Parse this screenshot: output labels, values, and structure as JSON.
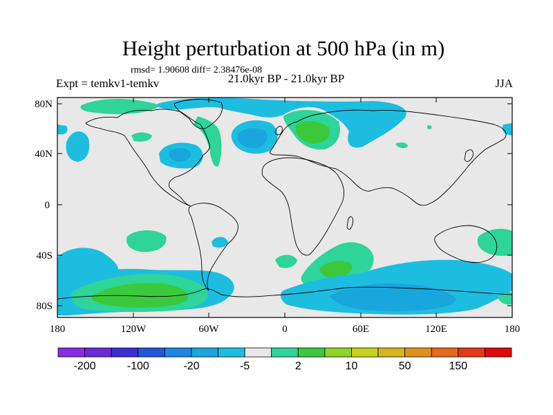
{
  "title": "Height perturbation at 500 hPa (in m)",
  "stats": "rmsd= 1.90608 diff= 2.38476e-08",
  "experiment": "Expt = temkv1-temkv",
  "period": "21.0kyr BP - 21.0kyr BP",
  "season": "JJA",
  "lat_ticks": [
    "80N",
    "40N",
    "0",
    "40S",
    "80S"
  ],
  "lon_ticks": [
    "180",
    "120W",
    "60W",
    "0",
    "60E",
    "120E",
    "180"
  ],
  "colorbar": {
    "colors": [
      "#8a2be2",
      "#6a2ad8",
      "#3b2fd0",
      "#2456d8",
      "#1e86e0",
      "#19a6dc",
      "#1dbde0",
      "#e8e8e8",
      "#2ed49a",
      "#3cc83c",
      "#8ed32a",
      "#c8d21e",
      "#d9b41a",
      "#e0901a",
      "#e26a1a",
      "#e23a1a",
      "#e00a0a"
    ],
    "labels": [
      "-200",
      "-100",
      "-20",
      "-5",
      "2",
      "10",
      "50",
      "150"
    ]
  },
  "colors": {
    "background": "#e8e8e8",
    "neg_light": "#1dbde0",
    "neg_mid": "#19a6dc",
    "pos_light": "#2ed49a",
    "pos_mid": "#3cc83c"
  }
}
